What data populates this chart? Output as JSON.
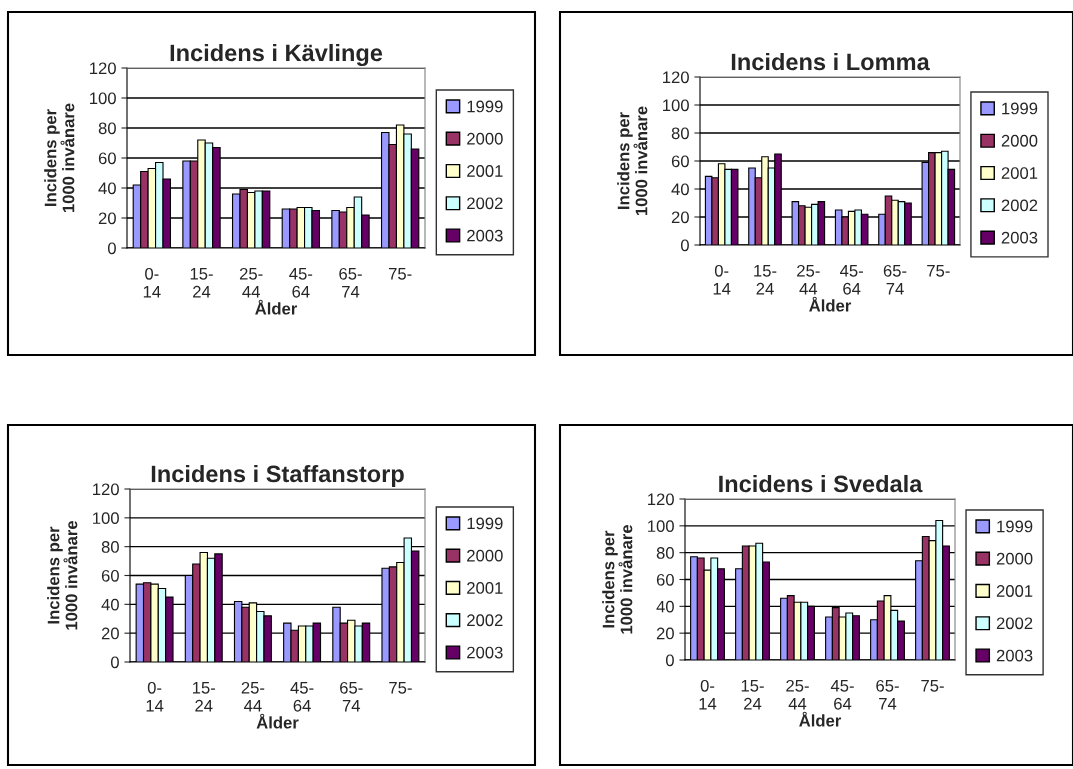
{
  "chart_data": [
    {
      "type": "bar",
      "title": "Incidens i Kävlinge",
      "xlabel": "Ålder",
      "ylabel": "Incidens per\n1000 invånare",
      "categories": [
        "0-\n14",
        "15-\n24",
        "25-\n44",
        "45-\n64",
        "65-\n74",
        "75-"
      ],
      "ylim": [
        0,
        120
      ],
      "yticks": [
        0,
        20,
        40,
        60,
        80,
        100,
        120
      ],
      "grid": "y",
      "legend": "right",
      "series": [
        {
          "name": "1999",
          "color": "#9999ff",
          "values": [
            42,
            58,
            36,
            26,
            25,
            77
          ]
        },
        {
          "name": "2000",
          "color": "#993366",
          "values": [
            51,
            58,
            39,
            26,
            24,
            69
          ]
        },
        {
          "name": "2001",
          "color": "#ffffcc",
          "values": [
            53,
            72,
            37,
            27,
            27,
            82
          ]
        },
        {
          "name": "2002",
          "color": "#ccffff",
          "values": [
            57,
            70,
            38,
            27,
            34,
            76
          ]
        },
        {
          "name": "2003",
          "color": "#660066",
          "values": [
            46,
            67,
            38,
            25,
            22,
            66
          ]
        }
      ]
    },
    {
      "type": "bar",
      "title": "Incidens i Lomma",
      "xlabel": "Ålder",
      "ylabel": "Incidens per\n1000 invånare",
      "categories": [
        "0-\n14",
        "15-\n24",
        "25-\n44",
        "45-\n64",
        "65-\n74",
        "75-"
      ],
      "ylim": [
        0,
        120
      ],
      "yticks": [
        0,
        20,
        40,
        60,
        80,
        100,
        120
      ],
      "grid": "y",
      "legend": "right",
      "series": [
        {
          "name": "1999",
          "color": "#9999ff",
          "values": [
            49,
            55,
            31,
            25,
            22,
            59
          ]
        },
        {
          "name": "2000",
          "color": "#993366",
          "values": [
            48,
            48,
            28,
            20,
            35,
            66
          ]
        },
        {
          "name": "2001",
          "color": "#ffffcc",
          "values": [
            58,
            63,
            27,
            24,
            32,
            66
          ]
        },
        {
          "name": "2002",
          "color": "#ccffff",
          "values": [
            54,
            55,
            29,
            25,
            31,
            67
          ]
        },
        {
          "name": "2003",
          "color": "#660066",
          "values": [
            54,
            65,
            31,
            22,
            30,
            54
          ]
        }
      ]
    },
    {
      "type": "bar",
      "title": "Incidens i Staffanstorp",
      "xlabel": "Ålder",
      "ylabel": "Incidens per\n1000 invånare",
      "categories": [
        "0-\n14",
        "15-\n24",
        "25-\n44",
        "45-\n64",
        "65-\n74",
        "75-"
      ],
      "ylim": [
        0,
        120
      ],
      "yticks": [
        0,
        20,
        40,
        60,
        80,
        100,
        120
      ],
      "grid": "y",
      "legend": "right",
      "series": [
        {
          "name": "1999",
          "color": "#9999ff",
          "values": [
            54,
            60,
            42,
            27,
            38,
            65
          ]
        },
        {
          "name": "2000",
          "color": "#993366",
          "values": [
            55,
            68,
            38,
            22,
            27,
            66
          ]
        },
        {
          "name": "2001",
          "color": "#ffffcc",
          "values": [
            54,
            76,
            41,
            25,
            29,
            69
          ]
        },
        {
          "name": "2002",
          "color": "#ccffff",
          "values": [
            51,
            72,
            35,
            25,
            25,
            86
          ]
        },
        {
          "name": "2003",
          "color": "#660066",
          "values": [
            45,
            75,
            32,
            27,
            27,
            77
          ]
        }
      ]
    },
    {
      "type": "bar",
      "title": "Incidens i Svedala",
      "xlabel": "Ålder",
      "ylabel": "Incidens per\n1000 invånare",
      "categories": [
        "0-\n14",
        "15-\n24",
        "25-\n44",
        "45-\n64",
        "65-\n74",
        "75-"
      ],
      "ylim": [
        0,
        120
      ],
      "yticks": [
        0,
        20,
        40,
        60,
        80,
        100,
        120
      ],
      "grid": "y",
      "legend": "right",
      "series": [
        {
          "name": "1999",
          "color": "#9999ff",
          "values": [
            77,
            68,
            46,
            32,
            30,
            74
          ]
        },
        {
          "name": "2000",
          "color": "#993366",
          "values": [
            76,
            85,
            48,
            39,
            44,
            92
          ]
        },
        {
          "name": "2001",
          "color": "#ffffcc",
          "values": [
            67,
            85,
            43,
            32,
            48,
            89
          ]
        },
        {
          "name": "2002",
          "color": "#ccffff",
          "values": [
            76,
            87,
            43,
            35,
            37,
            104
          ]
        },
        {
          "name": "2003",
          "color": "#660066",
          "values": [
            68,
            73,
            40,
            33,
            29,
            85
          ]
        }
      ]
    }
  ]
}
